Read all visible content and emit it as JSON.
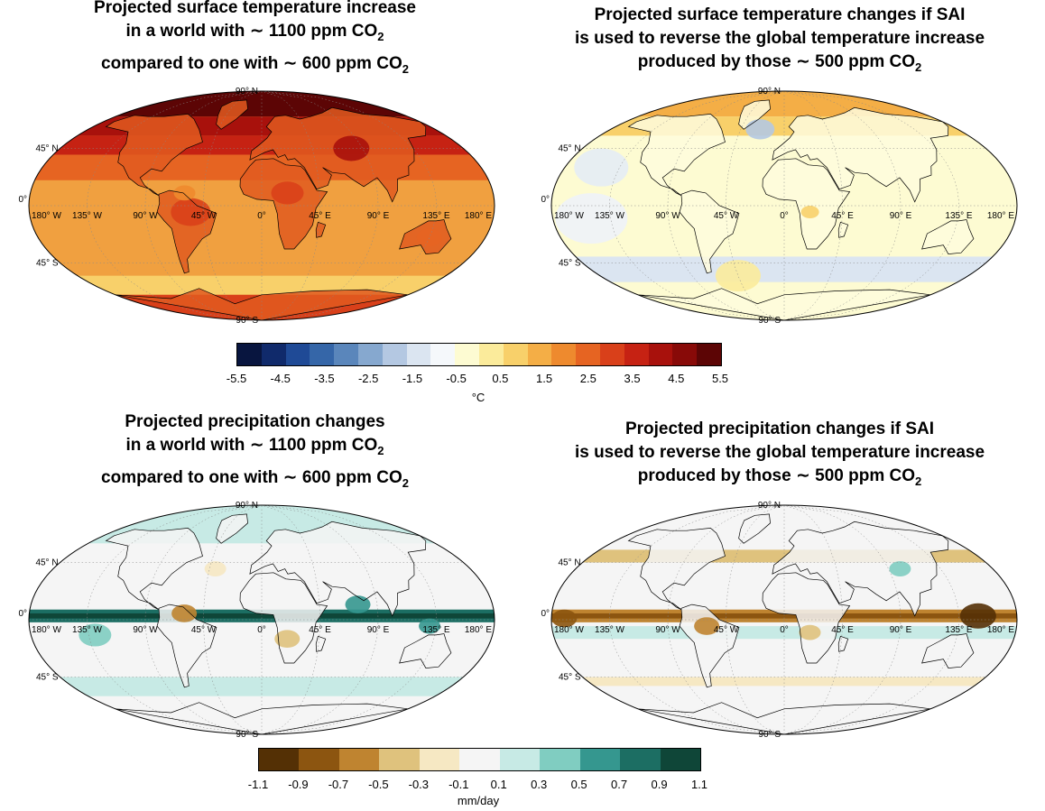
{
  "panels": [
    {
      "id": "temp-1100",
      "title_lines": [
        "Projected surface temperature increase",
        "in a world with ∼ 1100 ppm CO",
        "compared to one with ∼ 600 ppm CO"
      ],
      "title_subs": [
        "",
        "2",
        "2"
      ],
      "theme": "warm_strong"
    },
    {
      "id": "temp-sai",
      "title_lines": [
        "Projected surface temperature changes if SAI",
        "is used to reverse the global temperature increase",
        "produced by those ∼ 500 ppm CO"
      ],
      "title_subs": [
        "",
        "",
        "2"
      ],
      "theme": "warm_weak"
    },
    {
      "id": "precip-1100",
      "title_lines": [
        "Projected precipitation changes",
        "in a world with ∼ 1100 ppm CO",
        "compared to one with ∼ 600 ppm CO"
      ],
      "title_subs": [
        "",
        "2",
        "2"
      ],
      "theme": "wet"
    },
    {
      "id": "precip-sai",
      "title_lines": [
        "Projected precipitation changes if SAI",
        "is used to reverse the global temperature increase",
        "produced by those ∼ 500 ppm CO"
      ],
      "title_subs": [
        "",
        "",
        "2"
      ],
      "theme": "dry"
    }
  ],
  "map_labels": {
    "lat": [
      "90° N",
      "45° N",
      "0°",
      "45° S",
      "90° S"
    ],
    "lon": [
      "180° W",
      "135° W",
      "90° W",
      "45° W",
      "0°",
      "45° E",
      "90° E",
      "135° E",
      "180° E"
    ]
  },
  "temperature_colorbar": {
    "ticks": [
      "-5.5",
      "-4.5",
      "-3.5",
      "-2.5",
      "-1.5",
      "-0.5",
      "0.5",
      "1.5",
      "2.5",
      "3.5",
      "4.5",
      "5.5"
    ],
    "unit": "°C",
    "colors": [
      "#08153f",
      "#102a6b",
      "#1f4a96",
      "#3566a8",
      "#5a86bb",
      "#86a8cf",
      "#b4c8e2",
      "#dbe5f1",
      "#f5f8fb",
      "#fdfbd2",
      "#fbeb9b",
      "#f8d06a",
      "#f4ae46",
      "#ee8a2e",
      "#e66422",
      "#d9401a",
      "#c62213",
      "#a8110c",
      "#880a08",
      "#5c0505"
    ]
  },
  "precipitation_colorbar": {
    "ticks": [
      "-1.1",
      "-0.9",
      "-0.7",
      "-0.5",
      "-0.3",
      "-0.1",
      "0.1",
      "0.3",
      "0.5",
      "0.7",
      "0.9",
      "1.1"
    ],
    "unit": "mm/day",
    "colors": [
      "#543005",
      "#8c5510",
      "#bf8430",
      "#dfc27d",
      "#f6e8c3",
      "#f5f5f5",
      "#c7eae5",
      "#80cdc1",
      "#35978f",
      "#1c6e63",
      "#0f4638"
    ]
  }
}
